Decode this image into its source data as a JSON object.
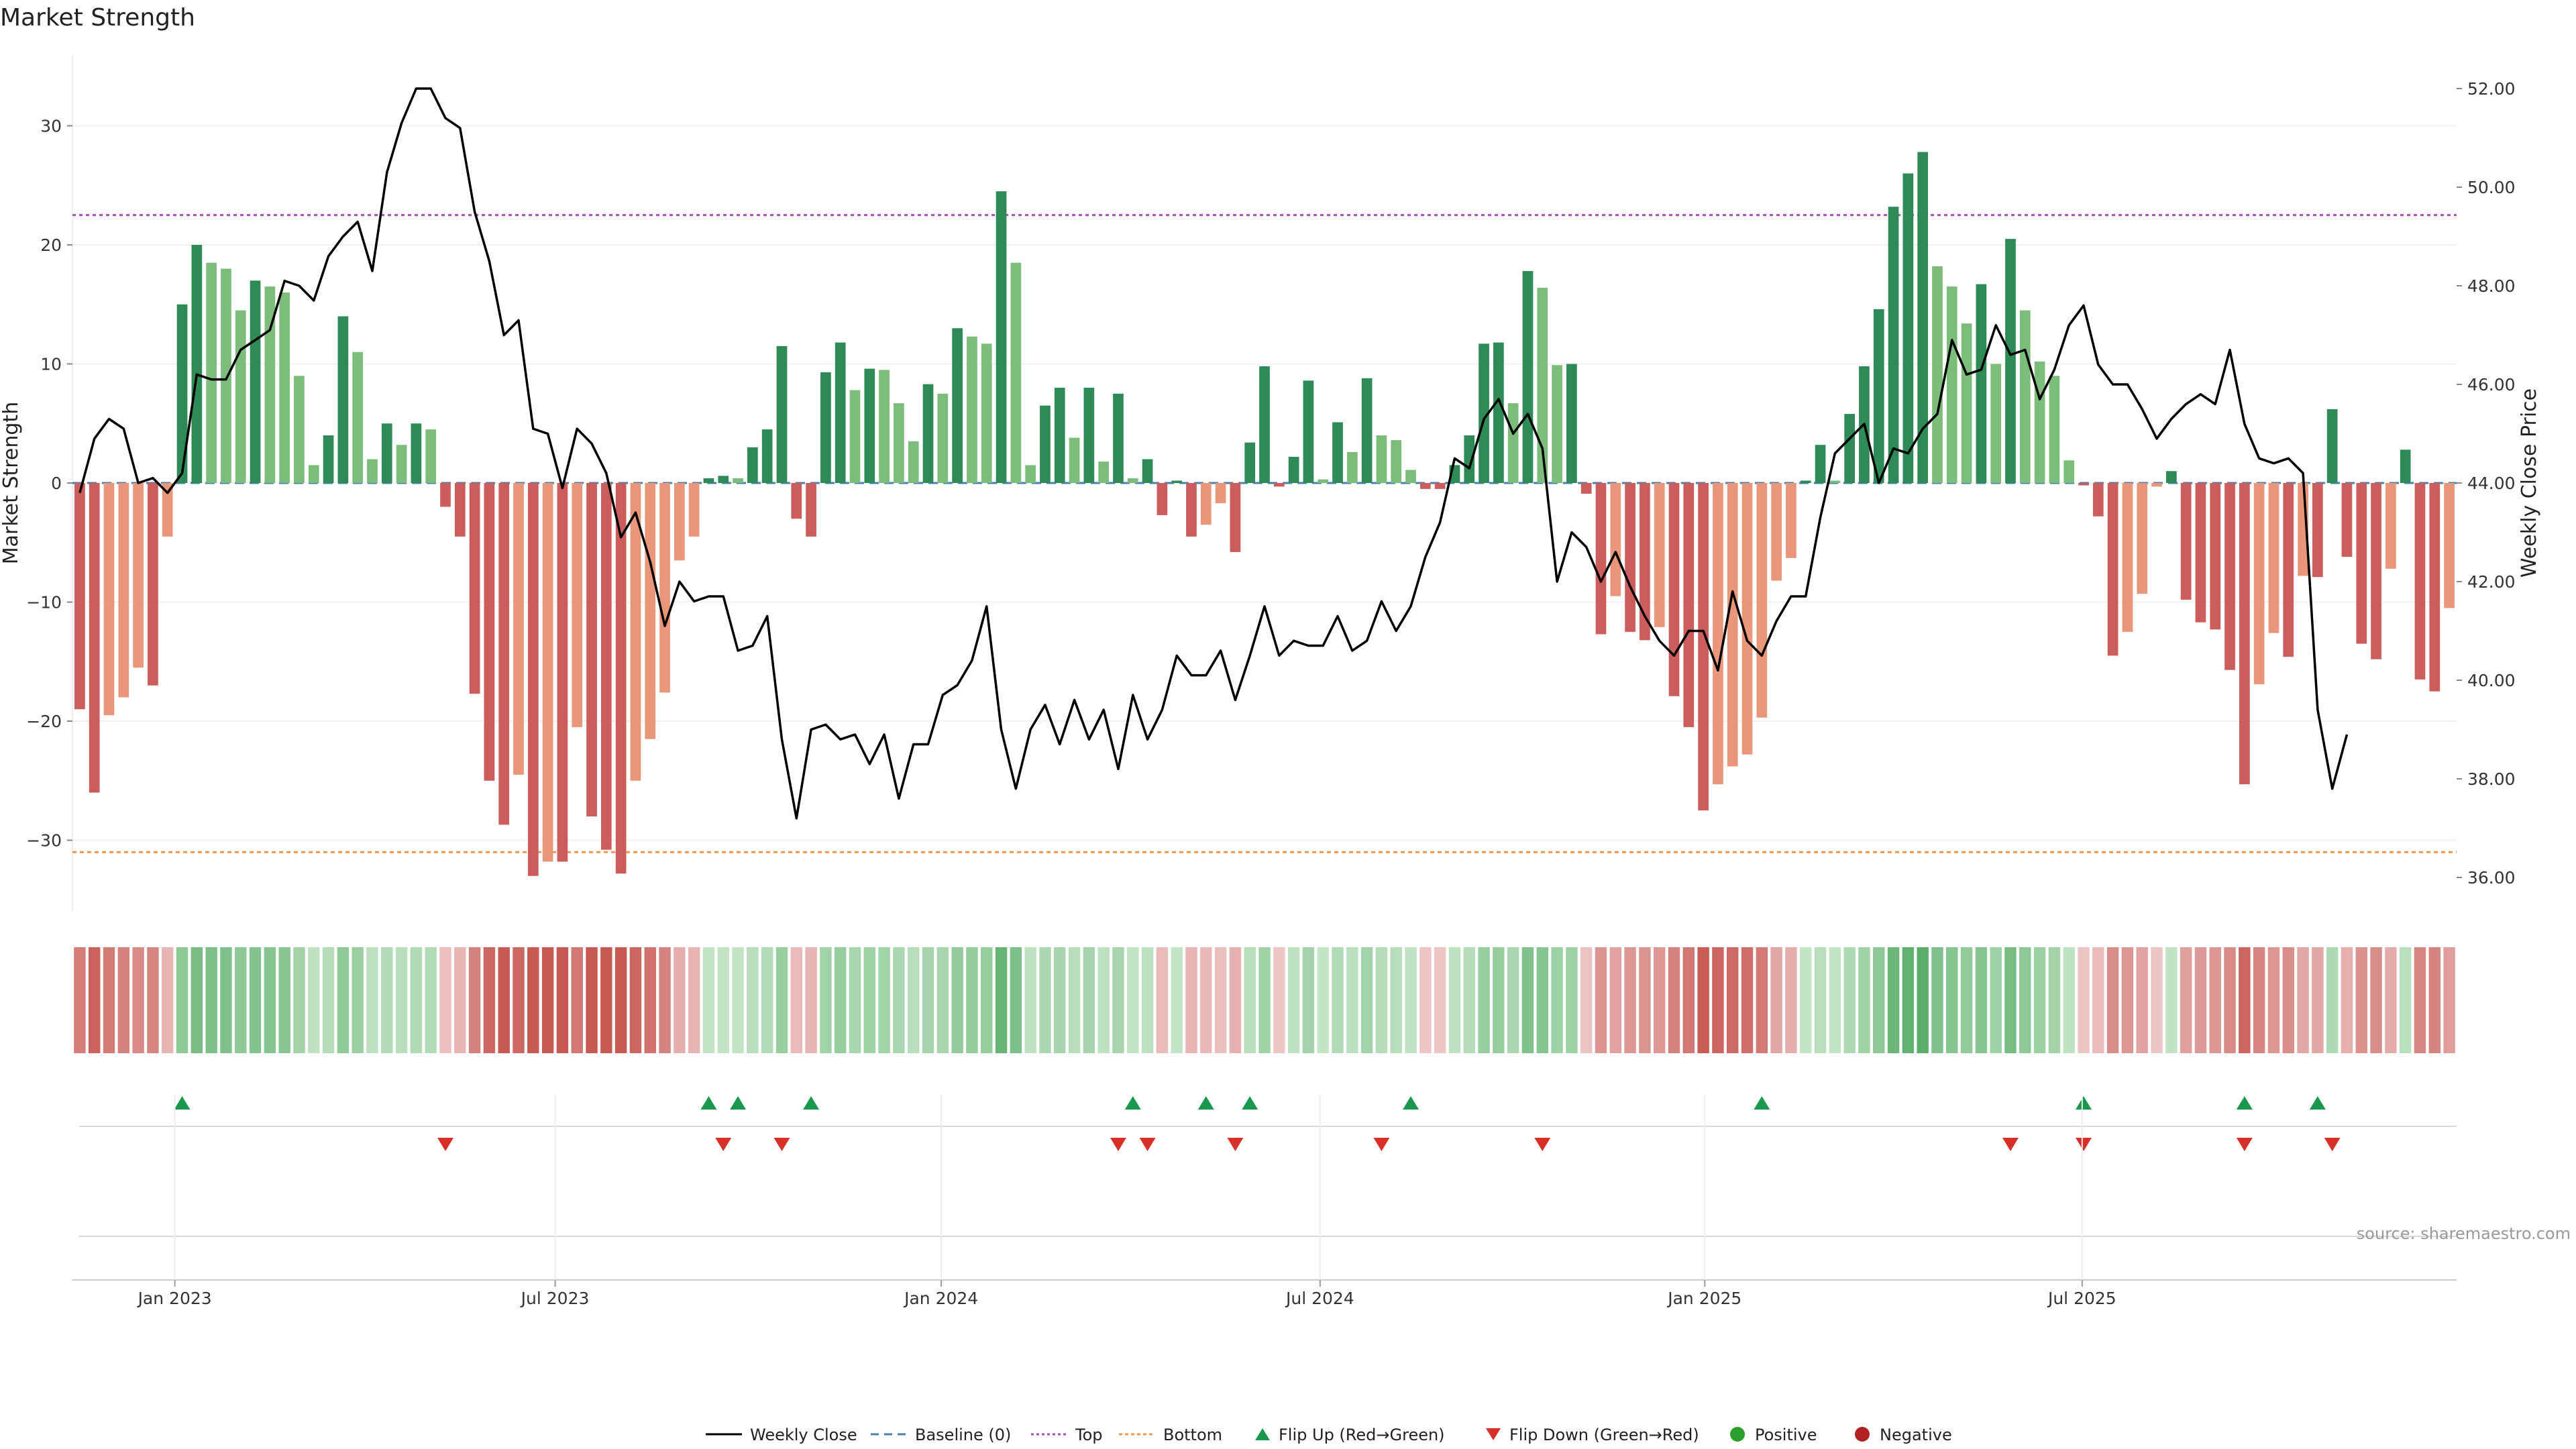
{
  "chart_data": {
    "type": "bar",
    "title": "Market Strength",
    "ylabel": "Market Strength",
    "y2label": "Weekly Close Price",
    "ylim": [
      -36,
      36
    ],
    "y2lim": [
      35.5,
      53.5
    ],
    "yticks": [
      30,
      20,
      10,
      0,
      -10,
      -20,
      -30
    ],
    "yticks_labels": [
      "30",
      "20",
      "10",
      "0",
      "−10",
      "−20",
      "−30"
    ],
    "y2ticks": [
      52,
      50,
      48,
      46,
      44,
      42,
      40,
      38,
      36
    ],
    "y2ticks_labels": [
      "52.00",
      "50.00",
      "48.00",
      "46.00",
      "44.00",
      "42.00",
      "40.00",
      "38.00",
      "36.00"
    ],
    "top_level": 22.5,
    "bottom_level": -31,
    "x_start": "2022-11-14",
    "x_step_days": 7,
    "xticks": [
      {
        "label": "Jan 2023",
        "week": 7
      },
      {
        "label": "Jul 2023",
        "week": 33
      },
      {
        "label": "Jan 2024",
        "week": 59.4
      },
      {
        "label": "Jul 2024",
        "week": 85.3
      },
      {
        "label": "Jan 2025",
        "week": 111.6
      },
      {
        "label": "Jul 2025",
        "week": 137.4
      }
    ],
    "strength": [
      -19,
      -26,
      -19.5,
      -18,
      -15.5,
      -17,
      -4.5,
      15,
      20,
      18.5,
      18,
      14.5,
      17,
      16.5,
      16,
      9,
      1.5,
      4,
      14,
      11,
      2,
      5,
      3.2,
      5,
      4.5,
      -2,
      -4.5,
      -17.7,
      -25,
      -28.7,
      -24.5,
      -33,
      -31.8,
      -31.8,
      -20.5,
      -28,
      -30.8,
      -32.8,
      -25,
      -21.5,
      -17.6,
      -6.5,
      -4.5,
      0.4,
      0.6,
      0.4,
      3,
      4.5,
      11.5,
      -3,
      -4.5,
      9.3,
      11.8,
      7.8,
      9.6,
      9.5,
      6.7,
      3.5,
      8.3,
      7.5,
      13,
      12.3,
      11.7,
      24.5,
      18.5,
      1.5,
      6.5,
      8,
      3.8,
      8,
      1.8,
      7.5,
      0.4,
      2,
      -2.7,
      0.2,
      -4.5,
      -3.5,
      -1.7,
      -5.8,
      3.4,
      9.8,
      -0.3,
      2.2,
      8.6,
      0.3,
      5.1,
      2.6,
      8.8,
      4,
      3.6,
      1.1,
      -0.5,
      -0.5,
      1.5,
      4,
      11.7,
      11.8,
      6.7,
      17.8,
      16.4,
      9.9,
      10,
      -0.9,
      -12.7,
      -9.5,
      -12.5,
      -13.2,
      -12.1,
      -17.9,
      -20.5,
      -27.5,
      -25.3,
      -23.8,
      -22.8,
      -19.7,
      -8.2,
      -6.3,
      0.2,
      3.2,
      0.2,
      5.8,
      9.8,
      14.6,
      23.2,
      26,
      27.8,
      18.2,
      16.5,
      13.4,
      16.7,
      10,
      20.5,
      14.5,
      10.2,
      9,
      1.9,
      -0.2,
      -2.8,
      -14.5,
      -12.5,
      -9.3,
      -0.3,
      1,
      -9.8,
      -11.7,
      -12.3,
      -15.7,
      -25.3,
      -16.9,
      -12.6,
      -14.6,
      -7.8,
      -7.9,
      6.2,
      -6.2,
      -13.5,
      -14.8,
      -7.2,
      2.8,
      -16.5,
      -17.5,
      -10.5
    ],
    "close": [
      43.8,
      44.9,
      45.3,
      45.1,
      44,
      44.1,
      43.8,
      44.2,
      46.2,
      46.1,
      46.1,
      46.7,
      46.9,
      47.1,
      48.1,
      48,
      47.7,
      48.6,
      49,
      49.3,
      48.3,
      50.3,
      51.3,
      52,
      52,
      51.4,
      51.2,
      49.5,
      48.5,
      47,
      47.3,
      45.1,
      45,
      43.9,
      45.1,
      44.8,
      44.2,
      42.9,
      43.4,
      42.4,
      41.1,
      42,
      41.6,
      41.7,
      41.7,
      40.6,
      40.7,
      41.3,
      38.8,
      37.2,
      39,
      39.1,
      38.8,
      38.9,
      38.3,
      38.9,
      37.6,
      38.7,
      38.7,
      39.7,
      39.9,
      40.4,
      41.5,
      39,
      37.8,
      39,
      39.5,
      38.7,
      39.6,
      38.8,
      39.4,
      38.2,
      39.7,
      38.8,
      39.4,
      40.5,
      40.1,
      40.1,
      40.6,
      39.6,
      40.5,
      41.5,
      40.5,
      40.8,
      40.7,
      40.7,
      41.3,
      40.6,
      40.8,
      41.6,
      41,
      41.5,
      42.5,
      43.2,
      44.5,
      44.3,
      45.3,
      45.7,
      45,
      45.4,
      44.7,
      42,
      43,
      42.7,
      42,
      42.6,
      41.9,
      41.3,
      40.8,
      40.5,
      41,
      41,
      40.2,
      41.8,
      40.8,
      40.5,
      41.2,
      41.7,
      41.7,
      43.3,
      44.6,
      44.9,
      45.2,
      44,
      44.7,
      44.6,
      45.1,
      45.4,
      46.9,
      46.2,
      46.3,
      47.2,
      46.6,
      46.7,
      45.7,
      46.3,
      47.2,
      47.6,
      46.4,
      46,
      46,
      45.5,
      44.9,
      45.3,
      45.6,
      45.8,
      45.6,
      46.7,
      45.2,
      44.5,
      44.4,
      44.5,
      44.2,
      39.4,
      37.8,
      38.9
    ],
    "flip_up_weeks": [
      7,
      43,
      45,
      50,
      72,
      77,
      80,
      91,
      115,
      137,
      148,
      153
    ],
    "flip_down_weeks": [
      25,
      44,
      48,
      71,
      73,
      79,
      89,
      100,
      132,
      137,
      148,
      154
    ],
    "legend": [
      "Weekly Close",
      "Baseline (0)",
      "Top",
      "Bottom",
      "Flip Up (Red→Green)",
      "Flip Down (Green→Red)",
      "Positive",
      "Negative"
    ],
    "colors": {
      "pos_strong": "#2e8b57",
      "pos_weak": "#7cbd7c",
      "neg_strong": "#cd5c5c",
      "neg_weak": "#e9967a",
      "close_line": "#000000",
      "baseline": "#4a7fb0",
      "top": "#a84fb8",
      "bottom": "#f2994a",
      "flip_up": "#1a9850",
      "flip_down": "#d73027",
      "positive_dot": "#2ca02c",
      "negative_dot": "#b22222"
    }
  },
  "source": "source: sharemaestro.com"
}
